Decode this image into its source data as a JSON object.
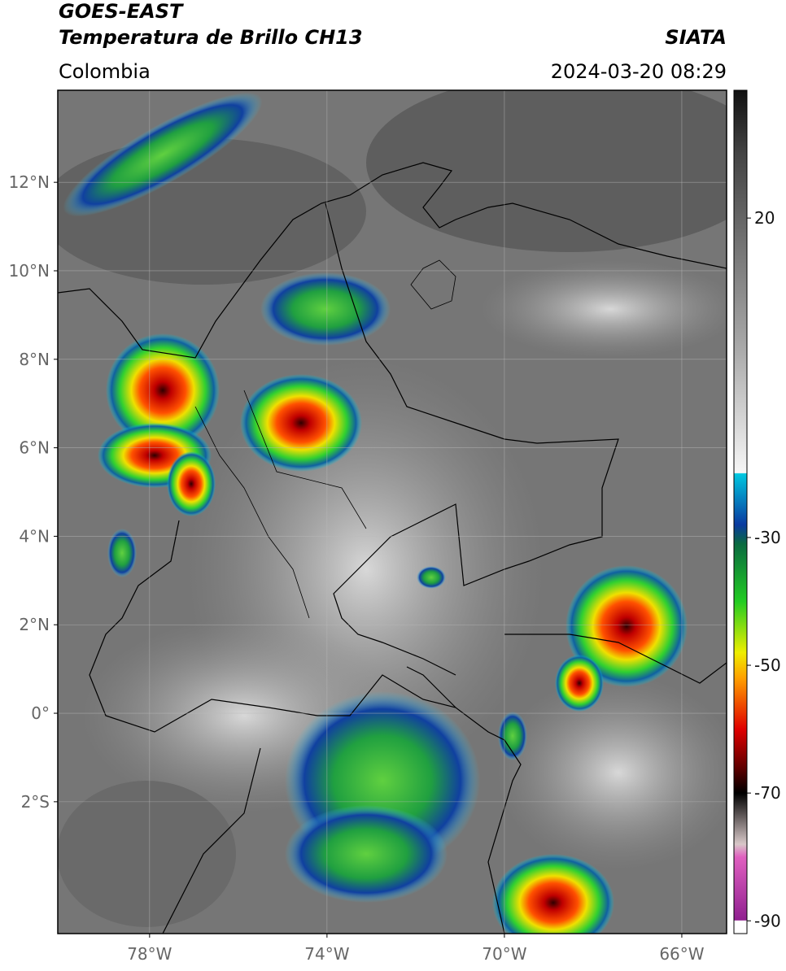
{
  "header": {
    "title": "GOES-EAST",
    "subtitle": "Temperatura de Brillo CH13",
    "region": "Colombia",
    "source": "SIATA",
    "timestamp": "2024-03-20 08:29"
  },
  "map": {
    "xlim": [
      -80.07,
      -64.99
    ],
    "ylim": [
      -4.98,
      14.08
    ],
    "xticks": [
      {
        "value": -78,
        "label": "78°W"
      },
      {
        "value": -74,
        "label": "74°W"
      },
      {
        "value": -70,
        "label": "70°W"
      },
      {
        "value": -66,
        "label": "66°W"
      }
    ],
    "yticks": [
      {
        "value": 12,
        "label": "12°N"
      },
      {
        "value": 10,
        "label": "10°N"
      },
      {
        "value": 8,
        "label": "8°N"
      },
      {
        "value": 6,
        "label": "6°N"
      },
      {
        "value": 4,
        "label": "4°N"
      },
      {
        "value": 2,
        "label": "2°N"
      },
      {
        "value": 0,
        "label": "0°"
      },
      {
        "value": -2,
        "label": "2°S"
      }
    ],
    "grid": true
  },
  "colorbar": {
    "lim": [
      -92,
      40
    ],
    "ticks": [
      20,
      -30,
      -50,
      -70,
      -90
    ],
    "colormap": [
      [
        40,
        "#111111"
      ],
      [
        30,
        "#444444"
      ],
      [
        0,
        "#a8a8a8"
      ],
      [
        -19.9,
        "#f6f6f6"
      ],
      [
        -20,
        "#00c8e0"
      ],
      [
        -28,
        "#0a3aa0"
      ],
      [
        -31,
        "#0a6a40"
      ],
      [
        -40,
        "#22cc22"
      ],
      [
        -48,
        "#eeee00"
      ],
      [
        -52,
        "#ffa000"
      ],
      [
        -60,
        "#e00000"
      ],
      [
        -66,
        "#600000"
      ],
      [
        -70,
        "#000000"
      ],
      [
        -78,
        "#d8c8c8"
      ],
      [
        -80,
        "#e060c0"
      ],
      [
        -89.9,
        "#902090"
      ],
      [
        -90,
        "#ffffff"
      ],
      [
        -92,
        "#ffffff"
      ]
    ]
  }
}
